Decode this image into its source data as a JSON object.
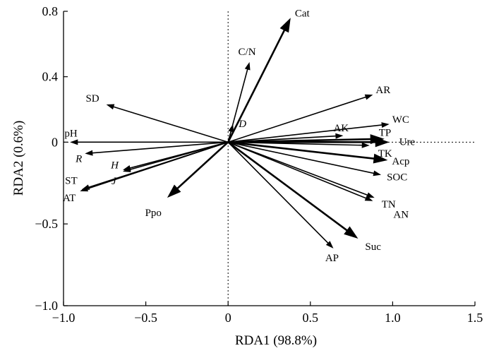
{
  "chart_data": {
    "type": "scatter",
    "subtype": "rda-biplot",
    "xlabel": "RDA1 (98.8%)",
    "ylabel": "RDA2 (0.6%)",
    "xlim": [
      -1.0,
      1.5
    ],
    "ylim": [
      -1.0,
      0.8
    ],
    "x_ticks": [
      -1.0,
      -0.5,
      0,
      0.5,
      1.0,
      1.5
    ],
    "x_tick_labels": [
      "−1.0",
      "−0.5",
      "0",
      "0.5",
      "1.0",
      "1.5"
    ],
    "y_ticks": [
      -1.0,
      -0.5,
      0,
      0.4,
      0.8
    ],
    "y_tick_labels": [
      "−1.0",
      "−0.5",
      "0",
      "0.4",
      "0.8"
    ],
    "reference_lines": {
      "x": 0,
      "y": 0,
      "style": "dotted"
    },
    "grid": false,
    "legend": "none",
    "vectors": [
      {
        "label": "Cat",
        "x": 0.38,
        "y": 0.76,
        "head": "large",
        "italic": false
      },
      {
        "label": "C/N",
        "x": 0.13,
        "y": 0.49,
        "head": "small",
        "italic": false
      },
      {
        "label": "D",
        "x": 0.03,
        "y": 0.11,
        "head": "small",
        "italic": true
      },
      {
        "label": "AR",
        "x": 0.88,
        "y": 0.29,
        "head": "small",
        "italic": false
      },
      {
        "label": "WC",
        "x": 0.98,
        "y": 0.11,
        "head": "small",
        "italic": false
      },
      {
        "label": "AK",
        "x": 0.7,
        "y": 0.04,
        "head": "small",
        "italic": false
      },
      {
        "label": "TP",
        "x": 0.95,
        "y": 0.02,
        "head": "large",
        "italic": false
      },
      {
        "label": "Ure",
        "x": 0.98,
        "y": 0.0,
        "head": "large",
        "italic": false
      },
      {
        "label": "TK",
        "x": 0.86,
        "y": -0.02,
        "head": "small",
        "italic": false
      },
      {
        "label": "Acp",
        "x": 0.97,
        "y": -0.11,
        "head": "large",
        "italic": false
      },
      {
        "label": "SOC",
        "x": 0.93,
        "y": -0.2,
        "head": "small",
        "italic": false
      },
      {
        "label": "TN",
        "x": 0.89,
        "y": -0.34,
        "head": "small",
        "italic": false
      },
      {
        "label": "AN",
        "x": 0.88,
        "y": -0.36,
        "head": "small",
        "italic": false
      },
      {
        "label": "Suc",
        "x": 0.79,
        "y": -0.59,
        "head": "large",
        "italic": false
      },
      {
        "label": "AP",
        "x": 0.64,
        "y": -0.65,
        "head": "small",
        "italic": false
      },
      {
        "label": "SD",
        "x": -0.74,
        "y": 0.23,
        "head": "small",
        "italic": false
      },
      {
        "label": "pH",
        "x": -0.96,
        "y": 0.0,
        "head": "small",
        "italic": false
      },
      {
        "label": "R",
        "x": -0.87,
        "y": -0.07,
        "head": "small",
        "italic": true
      },
      {
        "label": "H",
        "x": -0.64,
        "y": -0.17,
        "head": "small",
        "italic": true
      },
      {
        "label": "J",
        "x": -0.64,
        "y": -0.18,
        "head": "small",
        "italic": true
      },
      {
        "label": "ST",
        "x": -0.89,
        "y": -0.29,
        "head": "small",
        "italic": false
      },
      {
        "label": "AT",
        "x": -0.9,
        "y": -0.3,
        "head": "small",
        "italic": false
      },
      {
        "label": "Ppo",
        "x": -0.37,
        "y": -0.34,
        "head": "large",
        "italic": false
      }
    ]
  }
}
